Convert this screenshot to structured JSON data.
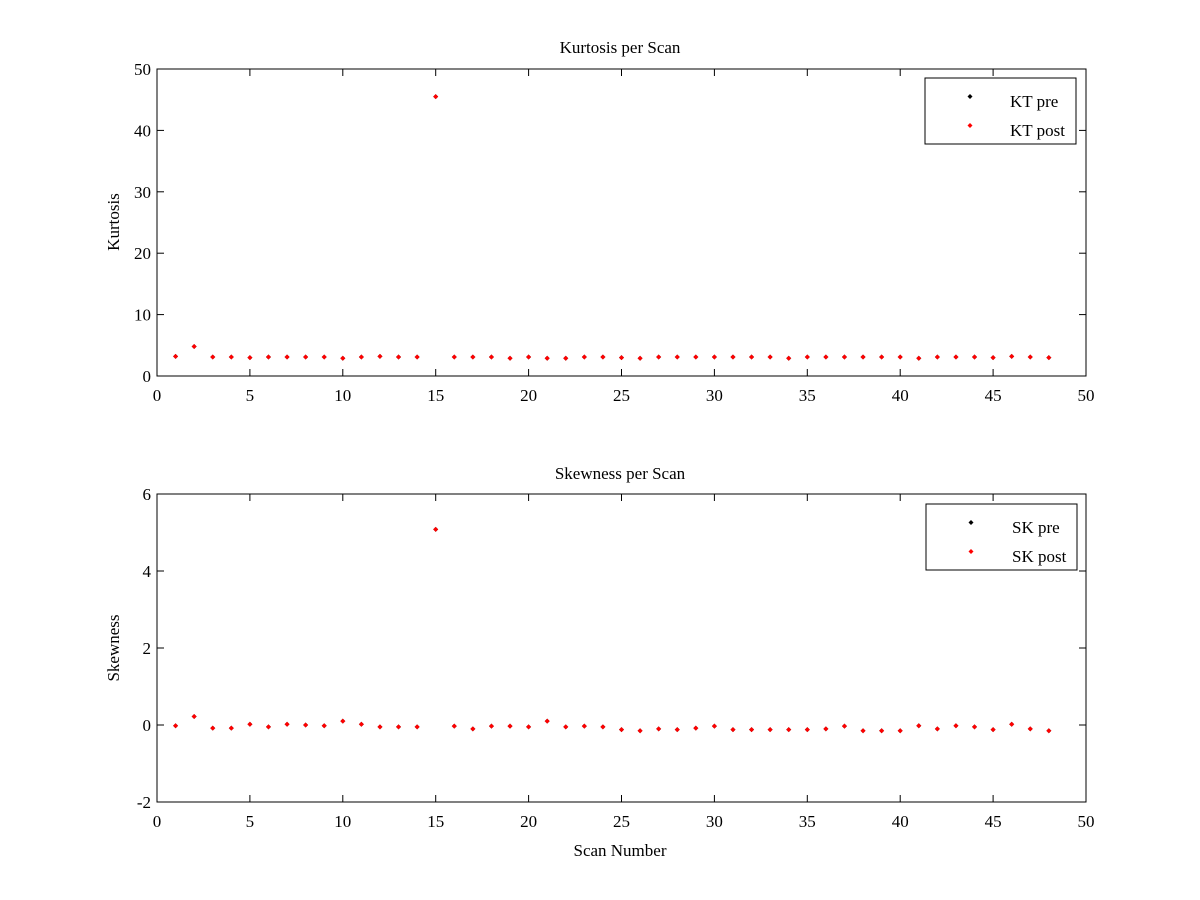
{
  "chart_data": [
    {
      "type": "scatter",
      "title": "Kurtosis per Scan",
      "xlabel": "",
      "ylabel": "Kurtosis",
      "xlim": [
        0,
        50
      ],
      "ylim": [
        0,
        50
      ],
      "xticks": [
        0,
        5,
        10,
        15,
        20,
        25,
        30,
        35,
        40,
        45,
        50
      ],
      "yticks": [
        0,
        10,
        20,
        30,
        40,
        50
      ],
      "grid": false,
      "legend_position": "top-right",
      "series": [
        {
          "name": "KT pre",
          "color": "#000000",
          "x": [
            1,
            2,
            3,
            4,
            5,
            6,
            7,
            8,
            9,
            10,
            11,
            12,
            13,
            14,
            15,
            16,
            17,
            18,
            19,
            20,
            21,
            22,
            23,
            24,
            25,
            26,
            27,
            28,
            29,
            30,
            31,
            32,
            33,
            34,
            35,
            36,
            37,
            38,
            39,
            40,
            41,
            42,
            43,
            44,
            45,
            46,
            47,
            48
          ],
          "y": [
            3.2,
            4.8,
            3.1,
            3.1,
            3.0,
            3.1,
            3.1,
            3.1,
            3.1,
            2.9,
            3.1,
            3.2,
            3.1,
            3.1,
            45.5,
            3.1,
            3.1,
            3.1,
            2.9,
            3.1,
            2.9,
            2.9,
            3.1,
            3.1,
            3.0,
            2.9,
            3.1,
            3.1,
            3.1,
            3.1,
            3.1,
            3.1,
            3.1,
            2.9,
            3.1,
            3.1,
            3.1,
            3.1,
            3.1,
            3.1,
            2.9,
            3.1,
            3.1,
            3.1,
            3.0,
            3.2,
            3.1,
            3.0
          ]
        },
        {
          "name": "KT post",
          "color": "#ff0000",
          "x": [
            1,
            2,
            3,
            4,
            5,
            6,
            7,
            8,
            9,
            10,
            11,
            12,
            13,
            14,
            15,
            16,
            17,
            18,
            19,
            20,
            21,
            22,
            23,
            24,
            25,
            26,
            27,
            28,
            29,
            30,
            31,
            32,
            33,
            34,
            35,
            36,
            37,
            38,
            39,
            40,
            41,
            42,
            43,
            44,
            45,
            46,
            47,
            48
          ],
          "y": [
            3.2,
            4.8,
            3.1,
            3.1,
            3.0,
            3.1,
            3.1,
            3.1,
            3.1,
            2.9,
            3.1,
            3.2,
            3.1,
            3.1,
            45.5,
            3.1,
            3.1,
            3.1,
            2.9,
            3.1,
            2.9,
            2.9,
            3.1,
            3.1,
            3.0,
            2.9,
            3.1,
            3.1,
            3.1,
            3.1,
            3.1,
            3.1,
            3.1,
            2.9,
            3.1,
            3.1,
            3.1,
            3.1,
            3.1,
            3.1,
            2.9,
            3.1,
            3.1,
            3.1,
            3.0,
            3.2,
            3.1,
            3.0
          ]
        }
      ]
    },
    {
      "type": "scatter",
      "title": "Skewness per Scan",
      "xlabel": "Scan Number",
      "ylabel": "Skewness",
      "xlim": [
        0,
        50
      ],
      "ylim": [
        -2,
        6
      ],
      "xticks": [
        0,
        5,
        10,
        15,
        20,
        25,
        30,
        35,
        40,
        45,
        50
      ],
      "yticks": [
        -2,
        0,
        2,
        4,
        6
      ],
      "grid": false,
      "legend_position": "top-right",
      "series": [
        {
          "name": "SK pre",
          "color": "#000000",
          "x": [
            1,
            2,
            3,
            4,
            5,
            6,
            7,
            8,
            9,
            10,
            11,
            12,
            13,
            14,
            15,
            16,
            17,
            18,
            19,
            20,
            21,
            22,
            23,
            24,
            25,
            26,
            27,
            28,
            29,
            30,
            31,
            32,
            33,
            34,
            35,
            36,
            37,
            38,
            39,
            40,
            41,
            42,
            43,
            44,
            45,
            46,
            47,
            48
          ],
          "y": [
            -0.02,
            0.22,
            -0.08,
            -0.08,
            0.02,
            -0.05,
            0.02,
            0.0,
            -0.02,
            0.1,
            0.02,
            -0.05,
            -0.05,
            -0.05,
            5.08,
            -0.03,
            -0.1,
            -0.03,
            -0.03,
            -0.05,
            0.1,
            -0.05,
            -0.03,
            -0.05,
            -0.12,
            -0.15,
            -0.1,
            -0.12,
            -0.08,
            -0.03,
            -0.12,
            -0.12,
            -0.12,
            -0.12,
            -0.12,
            -0.1,
            -0.03,
            -0.15,
            -0.15,
            -0.15,
            -0.02,
            -0.1,
            -0.02,
            -0.05,
            -0.12,
            0.02,
            -0.1,
            -0.15
          ]
        },
        {
          "name": "SK post",
          "color": "#ff0000",
          "x": [
            1,
            2,
            3,
            4,
            5,
            6,
            7,
            8,
            9,
            10,
            11,
            12,
            13,
            14,
            15,
            16,
            17,
            18,
            19,
            20,
            21,
            22,
            23,
            24,
            25,
            26,
            27,
            28,
            29,
            30,
            31,
            32,
            33,
            34,
            35,
            36,
            37,
            38,
            39,
            40,
            41,
            42,
            43,
            44,
            45,
            46,
            47,
            48
          ],
          "y": [
            -0.02,
            0.22,
            -0.08,
            -0.08,
            0.02,
            -0.05,
            0.02,
            0.0,
            -0.02,
            0.1,
            0.02,
            -0.05,
            -0.05,
            -0.05,
            5.08,
            -0.03,
            -0.1,
            -0.03,
            -0.03,
            -0.05,
            0.1,
            -0.05,
            -0.03,
            -0.05,
            -0.12,
            -0.15,
            -0.1,
            -0.12,
            -0.08,
            -0.03,
            -0.12,
            -0.12,
            -0.12,
            -0.12,
            -0.12,
            -0.1,
            -0.03,
            -0.15,
            -0.15,
            -0.15,
            -0.02,
            -0.1,
            -0.02,
            -0.05,
            -0.12,
            0.02,
            -0.1,
            -0.15
          ]
        }
      ]
    }
  ]
}
